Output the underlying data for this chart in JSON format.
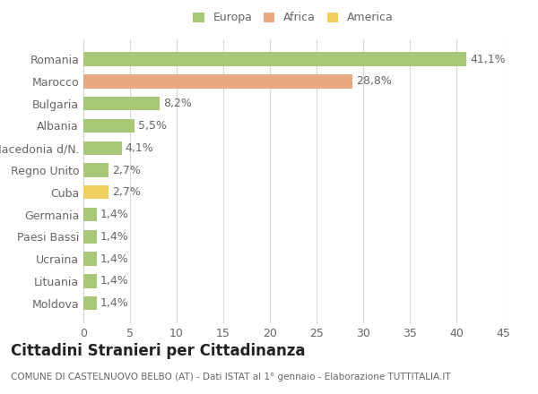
{
  "categories": [
    "Romania",
    "Marocco",
    "Bulgaria",
    "Albania",
    "Macedonia d/N.",
    "Regno Unito",
    "Cuba",
    "Germania",
    "Paesi Bassi",
    "Ucraina",
    "Lituania",
    "Moldova"
  ],
  "values": [
    41.1,
    28.8,
    8.2,
    5.5,
    4.1,
    2.7,
    2.7,
    1.4,
    1.4,
    1.4,
    1.4,
    1.4
  ],
  "labels": [
    "41,1%",
    "28,8%",
    "8,2%",
    "5,5%",
    "4,1%",
    "2,7%",
    "2,7%",
    "1,4%",
    "1,4%",
    "1,4%",
    "1,4%",
    "1,4%"
  ],
  "colors": [
    "#a8c878",
    "#e8a882",
    "#a8c878",
    "#a8c878",
    "#a8c878",
    "#a8c878",
    "#f0d060",
    "#a8c878",
    "#a8c878",
    "#a8c878",
    "#a8c878",
    "#a8c878"
  ],
  "legend_labels": [
    "Europa",
    "Africa",
    "America"
  ],
  "legend_colors": [
    "#a8c878",
    "#e8a882",
    "#f0d060"
  ],
  "title": "Cittadini Stranieri per Cittadinanza",
  "subtitle": "COMUNE DI CASTELNUOVO BELBO (AT) - Dati ISTAT al 1° gennaio - Elaborazione TUTTITALIA.IT",
  "xlim": [
    0,
    45
  ],
  "xticks": [
    0,
    5,
    10,
    15,
    20,
    25,
    30,
    35,
    40,
    45
  ],
  "background_color": "#ffffff",
  "grid_color": "#d8d8d8",
  "bar_height": 0.62,
  "label_fontsize": 9,
  "tick_fontsize": 9,
  "title_fontsize": 12,
  "subtitle_fontsize": 7.5
}
